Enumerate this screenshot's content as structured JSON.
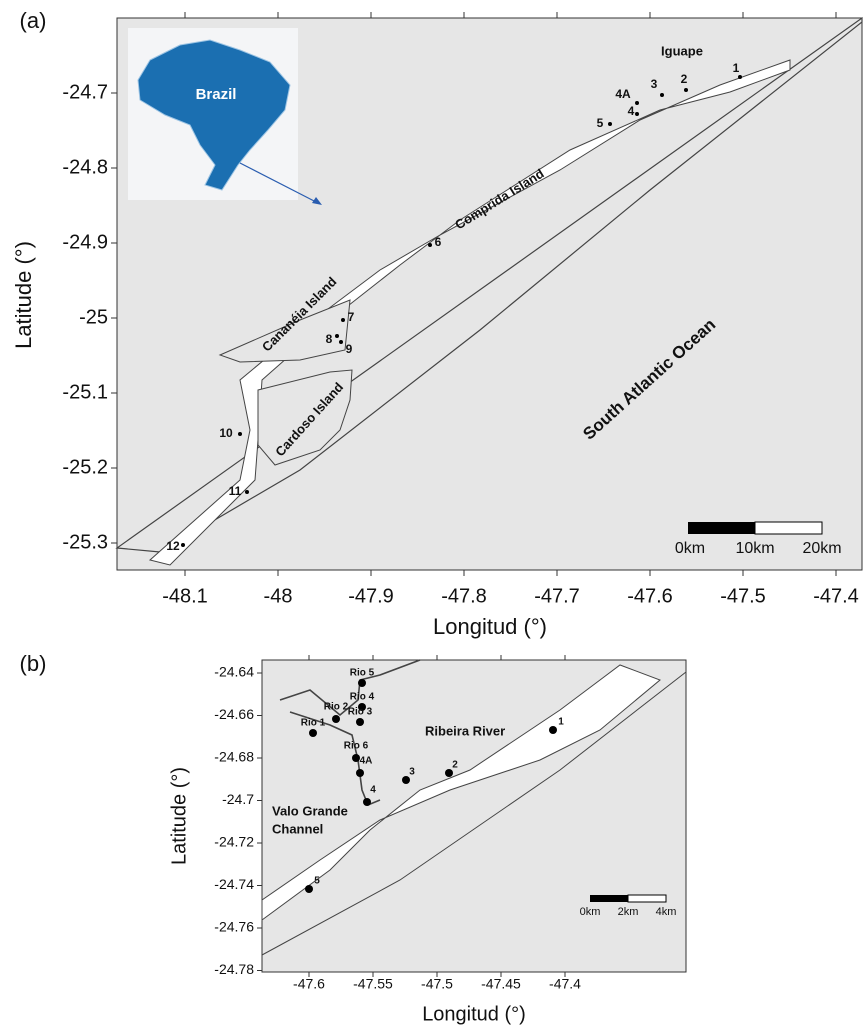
{
  "panels": [
    {
      "label": "(a)",
      "x_axis": {
        "title": "Longitud (°)",
        "ticks": [
          -48.1,
          -48,
          -47.9,
          -47.8,
          -47.7,
          -47.6,
          -47.5,
          -47.4
        ]
      },
      "y_axis": {
        "title": "Latitude (°)",
        "ticks": [
          -24.7,
          -24.8,
          -24.9,
          -25,
          -25.1,
          -25.2,
          -25.3
        ]
      },
      "inset": {
        "label": "Brazil"
      },
      "places": [
        "Iguape",
        "Comprida Island",
        "Cananéia Island",
        "Cardoso Island",
        "South Atlantic Ocean"
      ],
      "stations": [
        "1",
        "2",
        "3",
        "4A",
        "4",
        "5",
        "6",
        "7",
        "8",
        "9",
        "10",
        "11",
        "12"
      ],
      "scale_bar": [
        "0km",
        "10km",
        "20km"
      ]
    },
    {
      "label": "(b)",
      "x_axis": {
        "title": "Longitud (°)",
        "ticks": [
          -47.6,
          -47.55,
          -47.5,
          -47.45,
          -47.4
        ]
      },
      "y_axis": {
        "title": "Latitude (°)",
        "ticks": [
          -24.64,
          -24.66,
          -24.68,
          -24.7,
          -24.72,
          -24.74,
          -24.76,
          -24.78
        ]
      },
      "places": [
        "Ribeira River",
        "Valo Grande",
        "Channel"
      ],
      "stations": [
        "Rio 5",
        "Rio 4",
        "Rio 3",
        "Rio 2",
        "Rio 1",
        "Rio 6",
        "4A",
        "4",
        "3",
        "2",
        "1",
        "5"
      ],
      "scale_bar": [
        "0km",
        "2km",
        "4km"
      ]
    }
  ]
}
